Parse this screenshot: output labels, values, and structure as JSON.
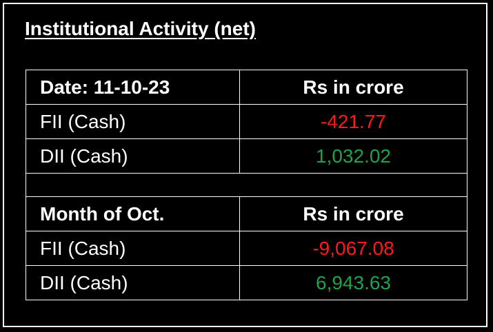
{
  "title": "Institutional Activity (net)",
  "table": {
    "sections": [
      {
        "header": [
          "Date: 11-10-23",
          "Rs in crore"
        ],
        "rows": [
          [
            "FII (Cash)",
            "-421.77"
          ],
          [
            "DII (Cash)",
            "1,032.02"
          ]
        ]
      },
      {
        "header": [
          "Month of Oct.",
          "Rs in crore"
        ],
        "rows": [
          [
            "FII (Cash)",
            "-9,067.08"
          ],
          [
            "DII (Cash)",
            "6,943.63"
          ]
        ]
      }
    ]
  }
}
